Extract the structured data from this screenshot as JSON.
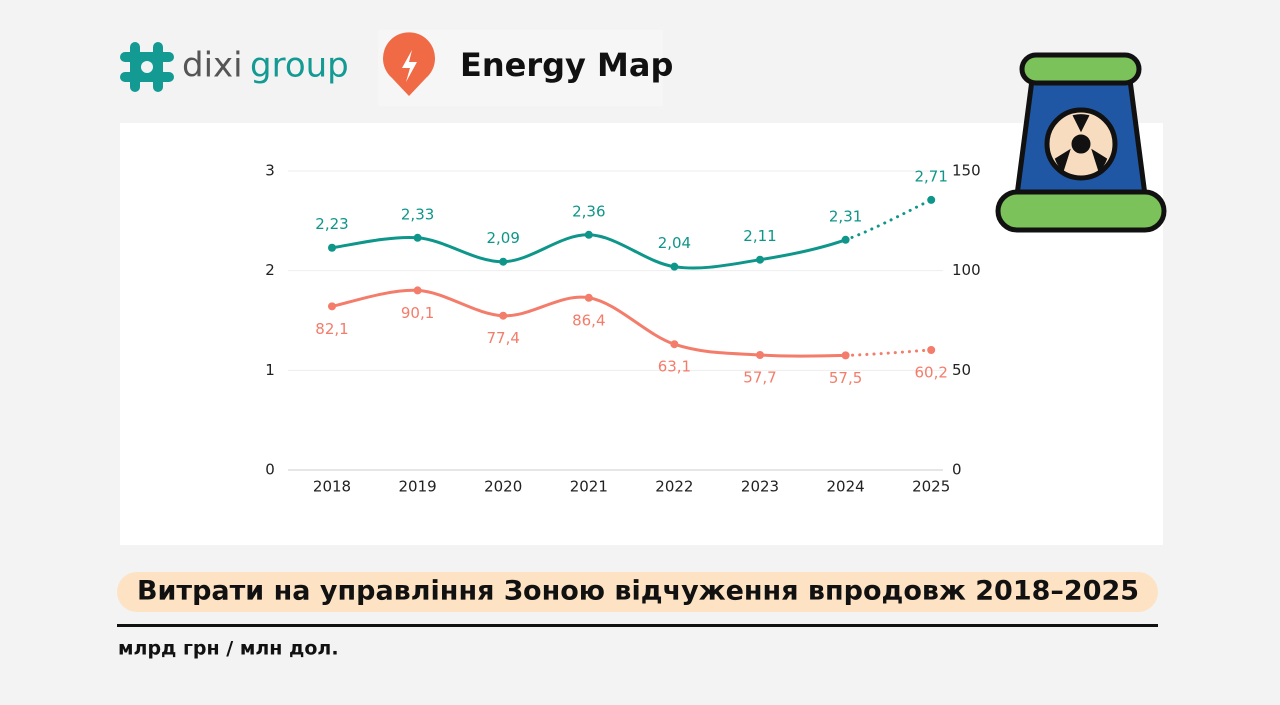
{
  "header": {
    "brand_left": "dixi",
    "brand_right": "group",
    "product": "Energy Map"
  },
  "chart_data": {
    "type": "line",
    "title": "Витрати на управління Зоною відчуження впродовж 2018–2025",
    "subtitle": "млрд грн / млн дол.",
    "categories": [
      "2018",
      "2019",
      "2020",
      "2021",
      "2022",
      "2023",
      "2024",
      "2025"
    ],
    "series": [
      {
        "color": "#0e968a",
        "axis": "y",
        "dotted_from": 6,
        "label_side": "above",
        "values": [
          2.23,
          2.33,
          2.09,
          2.36,
          2.04,
          2.11,
          2.31,
          2.71
        ],
        "value_labels": [
          "2,23",
          "2,33",
          "2,09",
          "2,36",
          "2,04",
          "2,11",
          "2,31",
          "2,71"
        ]
      },
      {
        "color": "#f47c6a",
        "axis": "y2",
        "dotted_from": 6,
        "label_side": "below",
        "values": [
          82.1,
          90.1,
          77.4,
          86.4,
          63.1,
          57.7,
          57.5,
          60.2
        ],
        "value_labels": [
          "82,1",
          "90,1",
          "77,4",
          "86,4",
          "63,1",
          "57,7",
          "57,5",
          "60,2"
        ]
      }
    ],
    "ylim": [
      0,
      3
    ],
    "yticks": [
      0,
      1,
      2,
      3
    ],
    "y2lim": [
      0,
      150
    ],
    "y2ticks": [
      0,
      50,
      100,
      150
    ],
    "grid": true
  }
}
